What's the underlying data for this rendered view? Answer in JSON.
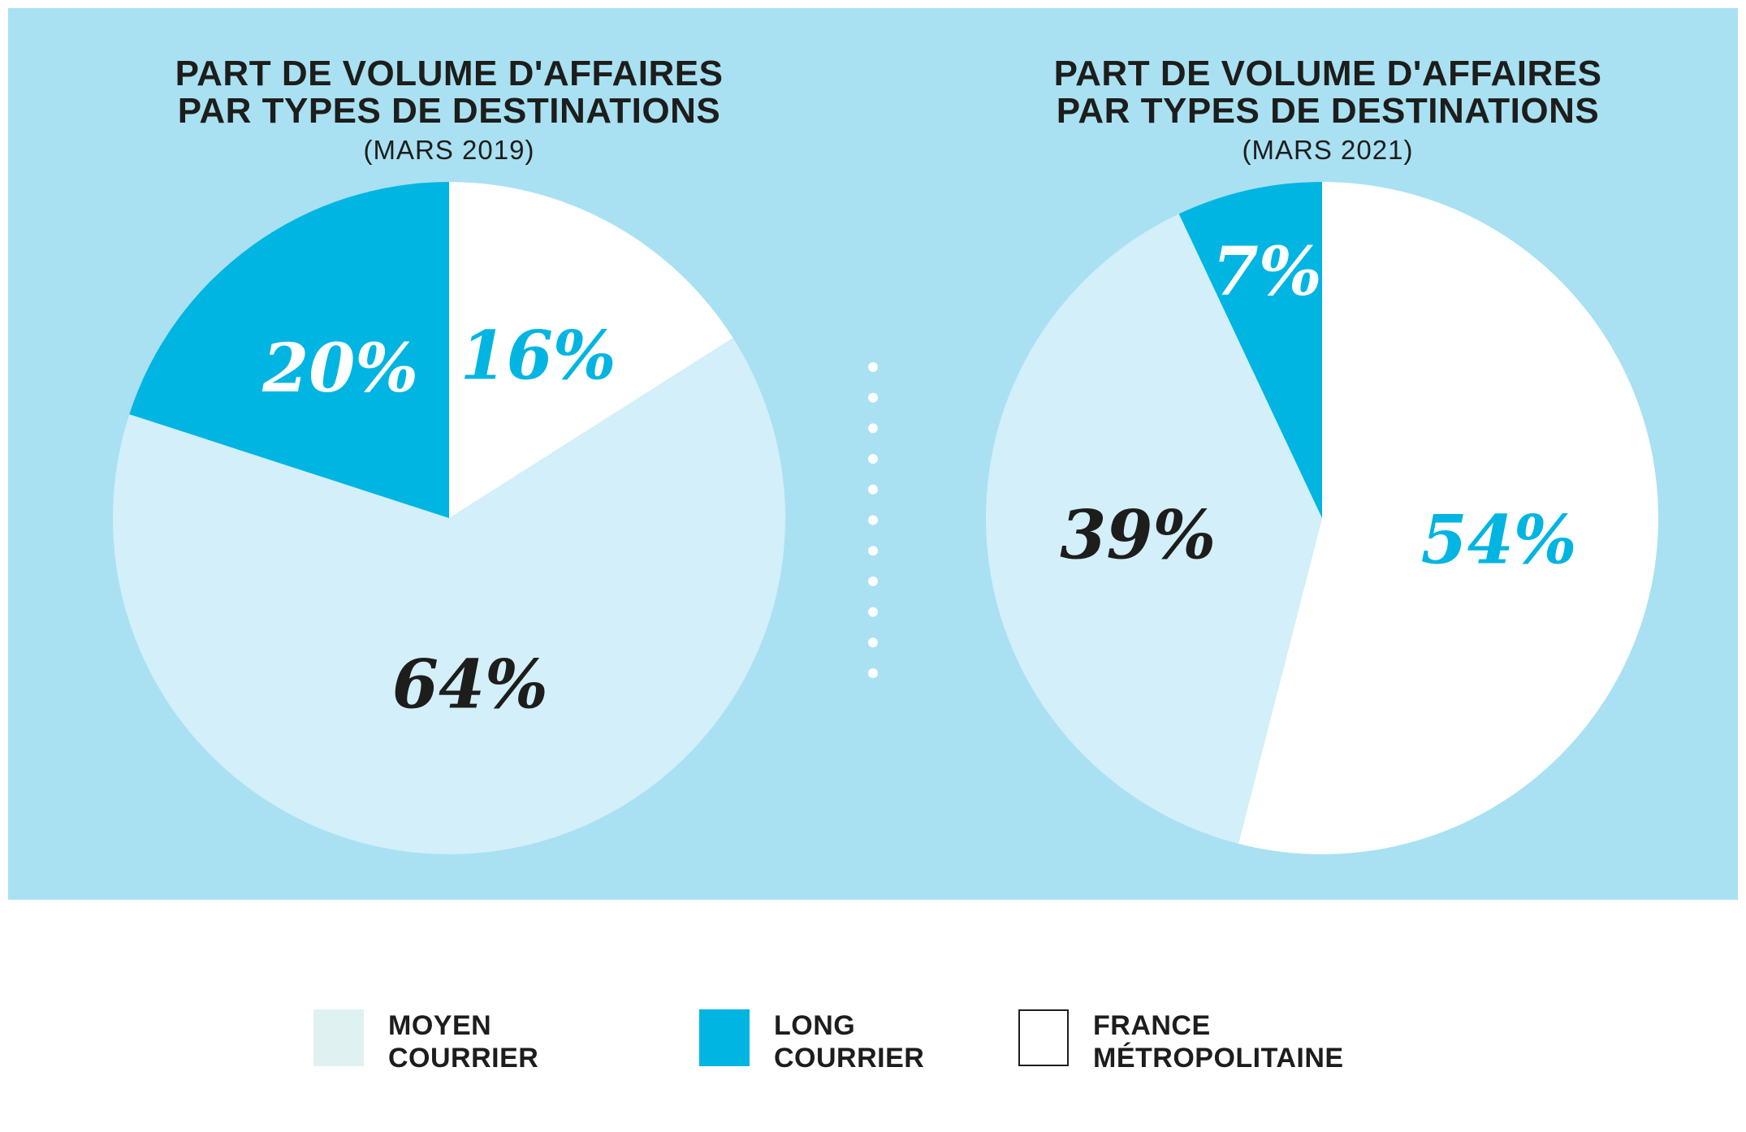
{
  "colors": {
    "background_panel": "#a9e1f2",
    "moyen_courrier": "#d3eff9",
    "long_courrier": "#00b5e2",
    "france_metropolitaine": "#ffffff",
    "legend_moyen": "#e0f1f1",
    "label_dark": "#1d1d1b",
    "label_blue": "#00b5e2",
    "label_white": "#ffffff",
    "dots": "#ffffff"
  },
  "chart_data": [
    {
      "type": "pie",
      "title_line1": "PART DE VOLUME D'AFFAIRES",
      "title_line2": "PAR TYPES DE DESTINATIONS",
      "subtitle": "(MARS 2019)",
      "slices": [
        {
          "name": "France Métropolitaine",
          "value": 16,
          "label": "16%",
          "label_color": "label_blue"
        },
        {
          "name": "Moyen Courrier",
          "value": 64,
          "label": "64%",
          "label_color": "label_dark"
        },
        {
          "name": "Long Courrier",
          "value": 20,
          "label": "20%",
          "label_color": "label_white"
        }
      ]
    },
    {
      "type": "pie",
      "title_line1": "PART DE VOLUME D'AFFAIRES",
      "title_line2": "PAR TYPES DE DESTINATIONS",
      "subtitle": "(MARS 2021)",
      "slices": [
        {
          "name": "France Métropolitaine",
          "value": 54,
          "label": "54%",
          "label_color": "label_blue"
        },
        {
          "name": "Moyen Courrier",
          "value": 39,
          "label": "39%",
          "label_color": "label_dark"
        },
        {
          "name": "Long Courrier",
          "value": 7,
          "label": "7%",
          "label_color": "label_white"
        }
      ]
    }
  ],
  "legend": [
    {
      "line1": "MOYEN",
      "line2": "COURRIER",
      "color_key": "legend_moyen"
    },
    {
      "line1": "LONG",
      "line2": "COURRIER",
      "color_key": "long_courrier"
    },
    {
      "line1": "FRANCE",
      "line2": "MÉTROPOLITAINE",
      "color_key": "france_metropolitaine"
    }
  ]
}
